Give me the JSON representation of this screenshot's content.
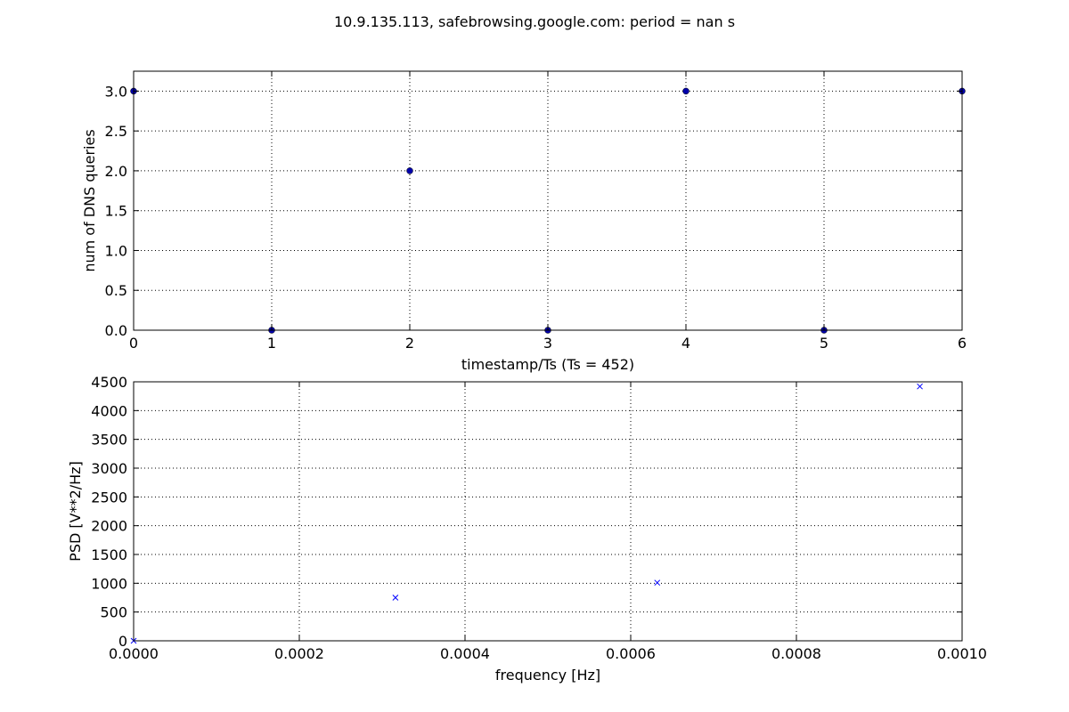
{
  "title": "10.9.135.113, safebrowsing.google.com: period = nan s",
  "chart_data": [
    {
      "type": "scatter",
      "xlabel": "timestamp/Ts (Ts = 452)",
      "ylabel": "num of DNS queries",
      "xlim": [
        0,
        6
      ],
      "ylim": [
        0,
        3.25
      ],
      "xticks": [
        "0",
        "1",
        "2",
        "3",
        "4",
        "5",
        "6"
      ],
      "xtick_values": [
        0,
        1,
        2,
        3,
        4,
        5,
        6
      ],
      "yticks": [
        "0.0",
        "0.5",
        "1.0",
        "1.5",
        "2.0",
        "2.5",
        "3.0"
      ],
      "ytick_values": [
        0,
        0.5,
        1,
        1.5,
        2,
        2.5,
        3
      ],
      "grid": true,
      "marker": "circle",
      "color": "#0000aa",
      "x": [
        0,
        1,
        2,
        3,
        4,
        5,
        6
      ],
      "y": [
        3,
        0,
        2,
        0,
        3,
        0,
        3
      ]
    },
    {
      "type": "scatter",
      "xlabel": "frequency [Hz]",
      "ylabel": "PSD [V**2/Hz]",
      "xlim": [
        0,
        0.001
      ],
      "ylim": [
        0,
        4500
      ],
      "xticks": [
        "0.0000",
        "0.0002",
        "0.0004",
        "0.0006",
        "0.0008",
        "0.0010"
      ],
      "xtick_values": [
        0,
        0.0002,
        0.0004,
        0.0006,
        0.0008,
        0.001
      ],
      "yticks": [
        "0",
        "500",
        "1000",
        "1500",
        "2000",
        "2500",
        "3000",
        "3500",
        "4000",
        "4500"
      ],
      "ytick_values": [
        0,
        500,
        1000,
        1500,
        2000,
        2500,
        3000,
        3500,
        4000,
        4500
      ],
      "grid": true,
      "marker": "x",
      "color": "#0000ff",
      "x": [
        0,
        0.000316,
        0.000632,
        0.000949
      ],
      "y": [
        0,
        750,
        1010,
        4420
      ]
    }
  ]
}
